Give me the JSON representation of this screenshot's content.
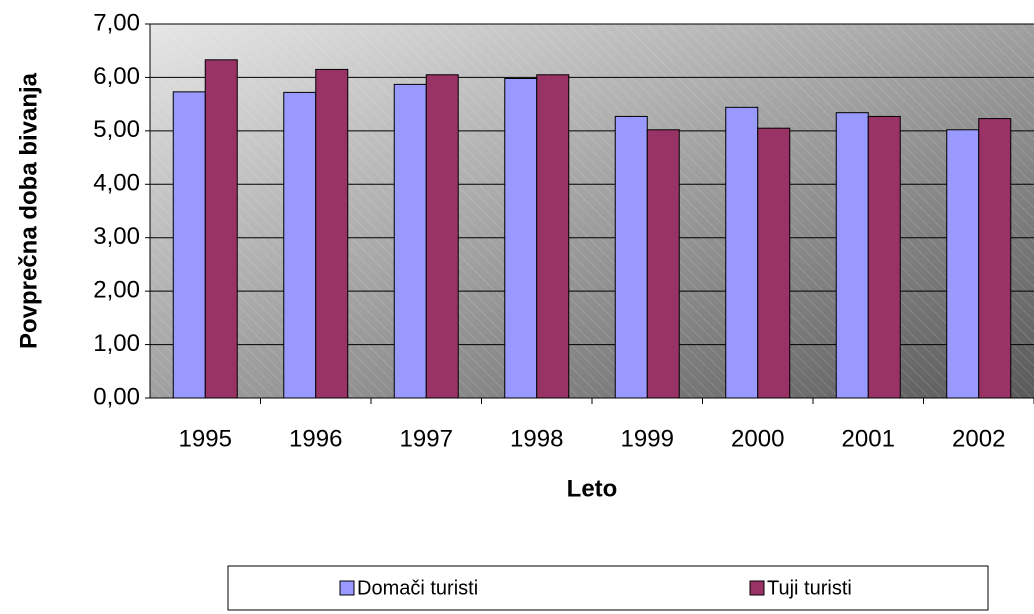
{
  "chart_data": {
    "type": "bar",
    "x_label": "Leto",
    "y_label": "Povprečna doba bivanja",
    "categories": [
      "1995",
      "1996",
      "1997",
      "1998",
      "1999",
      "2000",
      "2001",
      "2002"
    ],
    "series": [
      {
        "name": "Domači turisti",
        "color": "#9999ff",
        "values": [
          5.73,
          5.72,
          5.87,
          5.98,
          5.27,
          5.44,
          5.34,
          5.02
        ]
      },
      {
        "name": "Tuji turisti",
        "color": "#993366",
        "values": [
          6.33,
          6.15,
          6.05,
          6.05,
          5.02,
          5.05,
          5.27,
          5.23
        ]
      }
    ],
    "ylim": [
      0,
      7
    ],
    "yticks": [
      {
        "value": 0,
        "label": "0,00"
      },
      {
        "value": 1,
        "label": "1,00"
      },
      {
        "value": 2,
        "label": "2,00"
      },
      {
        "value": 3,
        "label": "3,00"
      },
      {
        "value": 4,
        "label": "4,00"
      },
      {
        "value": 5,
        "label": "5,00"
      },
      {
        "value": 6,
        "label": "6,00"
      },
      {
        "value": 7,
        "label": "7,00"
      }
    ],
    "grid": true,
    "legend": "bottom"
  }
}
